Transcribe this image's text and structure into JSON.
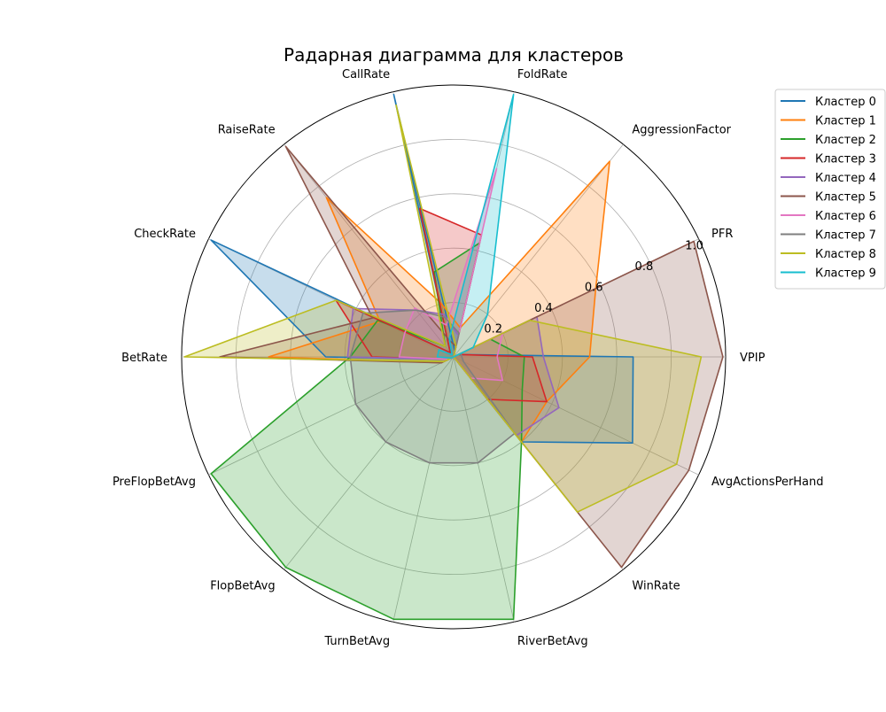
{
  "chart_data": {
    "type": "radar",
    "title": "Радарная диаграмма для кластеров",
    "categories": [
      "VPIP",
      "PFR",
      "AggressionFactor",
      "FoldRate",
      "CallRate",
      "RaiseRate",
      "CheckRate",
      "BetRate",
      "PreFlopBetAvg",
      "FlopBetAvg",
      "TurnBetAvg",
      "RiverBetAvg",
      "WinRate",
      "AvgActionsPerHand"
    ],
    "rlim": [
      0,
      1.0
    ],
    "rticks": [
      "0.2",
      "0.4",
      "0.6",
      "0.8",
      "1.0"
    ],
    "rtick_values": [
      0.2,
      0.4,
      0.6,
      0.8,
      1.0
    ],
    "grid": true,
    "legend_position": "upper right, outside",
    "series": [
      {
        "name": "Кластер 0",
        "color": "#1f77b4",
        "values": [
          0.66,
          0.02,
          0.0,
          0.02,
          0.99,
          0.02,
          0.99,
          0.47,
          0.02,
          0.0,
          0.0,
          0.0,
          0.4,
          0.73
        ]
      },
      {
        "name": "Кластер 1",
        "color": "#ff7f0e",
        "values": [
          0.5,
          0.58,
          0.92,
          0.11,
          0.2,
          0.75,
          0.3,
          0.68,
          0.05,
          0.0,
          0.0,
          0.0,
          0.4,
          0.38
        ]
      },
      {
        "name": "Кластер 2",
        "color": "#2ca02c",
        "values": [
          0.26,
          0.15,
          0.0,
          0.43,
          0.32,
          0.05,
          0.31,
          0.38,
          0.99,
          0.99,
          0.99,
          0.99,
          0.4,
          0.28
        ]
      },
      {
        "name": "Кластер 3",
        "color": "#d62728",
        "values": [
          0.29,
          0.02,
          0.0,
          0.46,
          0.56,
          0.02,
          0.48,
          0.3,
          0.02,
          0.0,
          0.0,
          0.0,
          0.2,
          0.38
        ]
      },
      {
        "name": "Кластер 4",
        "color": "#9467bd",
        "values": [
          0.33,
          0.34,
          0.0,
          0.08,
          0.16,
          0.22,
          0.41,
          0.39,
          0.02,
          0.0,
          0.0,
          0.0,
          0.37,
          0.43
        ]
      },
      {
        "name": "Кластер 5",
        "color": "#8c564b",
        "values": [
          0.99,
          0.98,
          0.0,
          0.04,
          0.06,
          0.99,
          0.33,
          0.86,
          0.05,
          0.0,
          0.0,
          0.0,
          0.99,
          0.96
        ]
      },
      {
        "name": "Кластер 6",
        "color": "#e377c2",
        "values": [
          0.16,
          0.2,
          0.0,
          0.71,
          0.12,
          0.23,
          0.2,
          0.2,
          0.02,
          0.0,
          0.0,
          0.0,
          0.1,
          0.2
        ]
      },
      {
        "name": "Кластер 7",
        "color": "#7f7f7f",
        "values": [
          0.03,
          0.03,
          0.0,
          0.09,
          0.15,
          0.22,
          0.37,
          0.38,
          0.4,
          0.4,
          0.4,
          0.4,
          0.36,
          0.04
        ]
      },
      {
        "name": "Кластер 8",
        "color": "#bcbd22",
        "values": [
          0.91,
          0.31,
          0.0,
          0.04,
          0.95,
          0.05,
          0.48,
          0.99,
          0.04,
          0.0,
          0.0,
          0.0,
          0.73,
          0.91
        ]
      },
      {
        "name": "Кластер 9",
        "color": "#17becf",
        "values": [
          0.0,
          0.08,
          0.2,
          0.99,
          0.07,
          0.01,
          0.06,
          0.06,
          0.01,
          0.0,
          0.0,
          0.0,
          0.0,
          0.0
        ]
      }
    ]
  }
}
